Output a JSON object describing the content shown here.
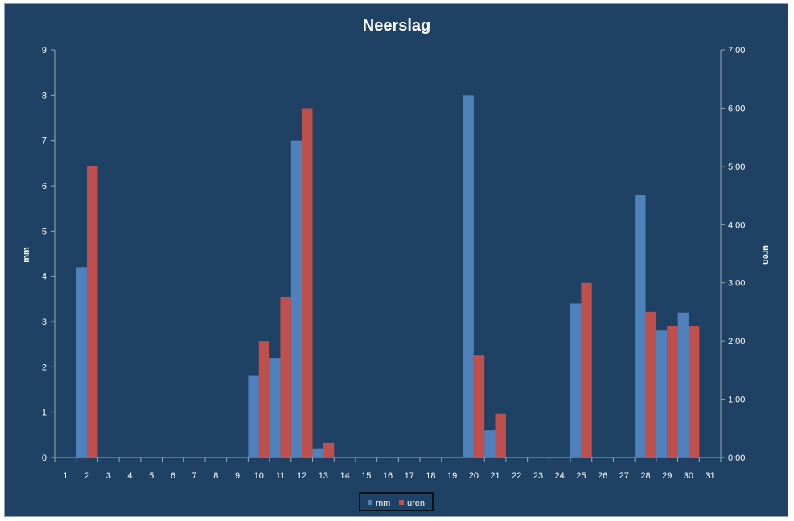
{
  "chart_data": {
    "type": "bar",
    "title": "Neerslag",
    "categories": [
      "1",
      "2",
      "3",
      "4",
      "5",
      "6",
      "7",
      "8",
      "9",
      "10",
      "11",
      "12",
      "13",
      "14",
      "15",
      "16",
      "17",
      "18",
      "19",
      "20",
      "21",
      "22",
      "23",
      "24",
      "25",
      "26",
      "27",
      "28",
      "29",
      "30",
      "31"
    ],
    "series": [
      {
        "name": "mm",
        "axis": "left",
        "color": "#4f81bd",
        "values": [
          0,
          4.2,
          0,
          0,
          0,
          0,
          0,
          0,
          0,
          1.8,
          2.2,
          7.0,
          0.2,
          0,
          0,
          0,
          0,
          0,
          0,
          8.0,
          0.6,
          0,
          0,
          0,
          3.4,
          0,
          0,
          5.8,
          2.8,
          3.2,
          0
        ]
      },
      {
        "name": "uren",
        "axis": "right",
        "color": "#c0504d",
        "values": [
          0,
          5.0,
          0,
          0,
          0,
          0,
          0,
          0,
          0,
          2.0,
          2.75,
          6.0,
          0.25,
          0,
          0,
          0,
          0,
          0,
          0,
          1.75,
          0.75,
          0,
          0,
          0,
          3.0,
          0,
          0,
          2.5,
          2.25,
          2.25,
          0
        ]
      }
    ],
    "ylabel_left": "mm",
    "ylim_left": [
      0,
      9
    ],
    "yticks_left": [
      "0",
      "1",
      "2",
      "3",
      "4",
      "5",
      "6",
      "7",
      "8",
      "9"
    ],
    "ylabel_right": "uren",
    "ylim_right": [
      0,
      7
    ],
    "yticks_right": [
      "0:00",
      "1:00",
      "2:00",
      "3:00",
      "4:00",
      "5:00",
      "6:00",
      "7:00"
    ],
    "grid": false,
    "legend_position": "bottom",
    "colors": {
      "background": "#1f4264",
      "axis": "#9ea8b4",
      "text": "#ffffff"
    }
  }
}
